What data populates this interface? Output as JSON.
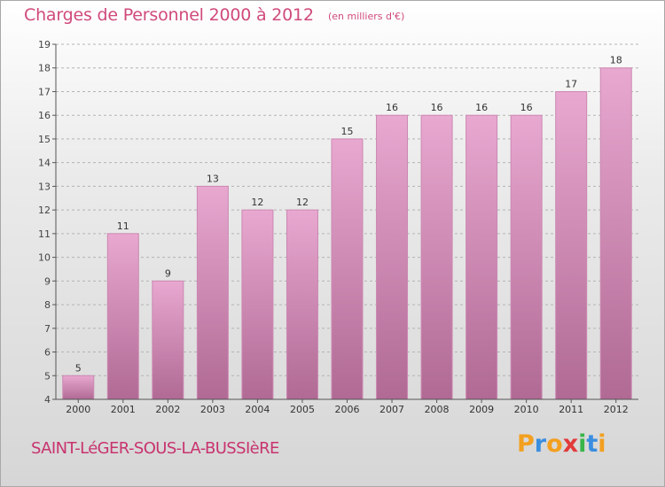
{
  "header": {
    "title": "Charges de Personnel 2000 à 2012",
    "unit": "(en milliers d'€)"
  },
  "footer": {
    "commune": "SAINT-LéGER-SOUS-LA-BUSSIèRE",
    "logo_letters": [
      "P",
      "r",
      "o",
      "x",
      "i",
      "t",
      "i"
    ],
    "logo_colors": [
      "#f3a020",
      "#3a8ee0",
      "#f3a020",
      "#e23a3a",
      "#3ab54a",
      "#3a8ee0",
      "#f3a020"
    ]
  },
  "colors": {
    "bar_top": "#e8a8d0",
    "bar_bottom": "#b06a94",
    "bar_stroke": "#cc88b2",
    "axis": "#555555",
    "grid": "#b4b4b4"
  },
  "chart_data": {
    "type": "bar",
    "categories": [
      "2000",
      "2001",
      "2002",
      "2003",
      "2004",
      "2005",
      "2006",
      "2007",
      "2008",
      "2009",
      "2010",
      "2011",
      "2012"
    ],
    "values": [
      5,
      11,
      9,
      13,
      12,
      12,
      15,
      16,
      16,
      16,
      16,
      17,
      18
    ],
    "title": "Charges de Personnel 2000 à 2012",
    "ylim": [
      4,
      19
    ],
    "yticks": [
      4,
      5,
      6,
      7,
      8,
      9,
      10,
      11,
      12,
      13,
      14,
      15,
      16,
      17,
      18,
      19
    ],
    "grid": true,
    "data_labels": true
  }
}
